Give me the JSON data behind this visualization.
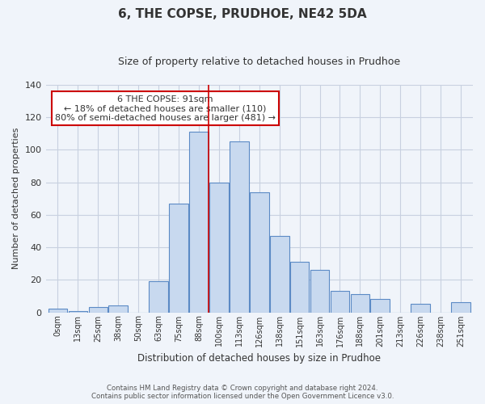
{
  "title": "6, THE COPSE, PRUDHOE, NE42 5DA",
  "subtitle": "Size of property relative to detached houses in Prudhoe",
  "xlabel": "Distribution of detached houses by size in Prudhoe",
  "ylabel": "Number of detached properties",
  "bar_labels": [
    "0sqm",
    "13sqm",
    "25sqm",
    "38sqm",
    "50sqm",
    "63sqm",
    "75sqm",
    "88sqm",
    "100sqm",
    "113sqm",
    "126sqm",
    "138sqm",
    "151sqm",
    "163sqm",
    "176sqm",
    "188sqm",
    "201sqm",
    "213sqm",
    "226sqm",
    "238sqm",
    "251sqm"
  ],
  "bar_values": [
    2,
    1,
    3,
    4,
    0,
    19,
    67,
    111,
    80,
    105,
    74,
    47,
    31,
    26,
    13,
    11,
    8,
    0,
    5,
    0,
    6
  ],
  "bar_color": "#c8d9ef",
  "bar_edge_color": "#5b8ac5",
  "property_label": "6 THE COPSE: 91sqm",
  "annotation_line1": "← 18% of detached houses are smaller (110)",
  "annotation_line2": "80% of semi-detached houses are larger (481) →",
  "vline_color": "#cc0000",
  "ylim": [
    0,
    140
  ],
  "yticks": [
    0,
    20,
    40,
    60,
    80,
    100,
    120,
    140
  ],
  "footer_line1": "Contains HM Land Registry data © Crown copyright and database right 2024.",
  "footer_line2": "Contains public sector information licensed under the Open Government Licence v3.0.",
  "background_color": "#f0f4fa",
  "grid_color": "#c8d0e0",
  "annotation_box_color": "#ffffff",
  "annotation_box_edge": "#cc0000",
  "title_fontsize": 11,
  "subtitle_fontsize": 9
}
